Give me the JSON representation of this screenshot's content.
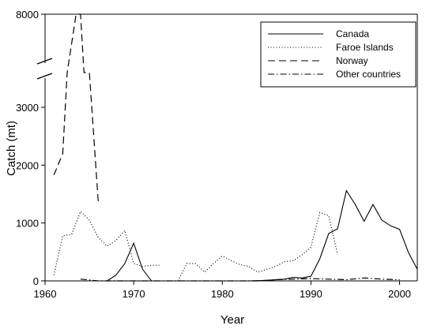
{
  "chart_data": {
    "type": "line",
    "xlabel": "Year",
    "ylabel": "Catch (mt)",
    "xlim": [
      1960,
      2002
    ],
    "ylim": [
      0,
      8000
    ],
    "x_ticks": [
      1960,
      1970,
      1980,
      1990,
      2000
    ],
    "y_ticks": [
      0,
      1000,
      2000,
      3000,
      8000
    ],
    "axis_break": {
      "from": 3600,
      "to": 8000
    },
    "grid": false,
    "legend_position": "top-right",
    "series": [
      {
        "name": "Canada",
        "style": "solid",
        "x": [
          1967,
          1968,
          1969,
          1970,
          1971,
          1972,
          1983,
          1985,
          1987,
          1988,
          1989,
          1990,
          1991,
          1992,
          1993,
          1994,
          1995,
          1996,
          1997,
          1998,
          1999,
          2000,
          2001,
          2002
        ],
        "values": [
          0,
          100,
          300,
          650,
          200,
          0,
          0,
          10,
          30,
          60,
          50,
          80,
          380,
          820,
          900,
          1560,
          1320,
          1030,
          1320,
          1050,
          950,
          890,
          490,
          200
        ]
      },
      {
        "name": "Faroe Islands",
        "style": "dotted",
        "segments": [
          {
            "x": [
              1961,
              1962,
              1963,
              1964,
              1965,
              1966,
              1967,
              1968,
              1969,
              1970,
              1971,
              1972,
              1973
            ],
            "values": [
              100,
              780,
              800,
              1200,
              1050,
              750,
              600,
              700,
              870,
              300,
              250,
              270,
              270
            ]
          },
          {
            "x": [
              1975,
              1976,
              1977,
              1978,
              1979,
              1980,
              1981,
              1982,
              1983,
              1984,
              1985,
              1986,
              1987,
              1988,
              1989,
              1990,
              1991,
              1992,
              1993
            ],
            "values": [
              0,
              300,
              300,
              150,
              300,
              430,
              350,
              280,
              250,
              150,
              200,
              250,
              330,
              350,
              450,
              580,
              1180,
              1130,
              460
            ]
          }
        ]
      },
      {
        "name": "Norway",
        "style": "dashed",
        "x": [
          1961,
          1962,
          1962.5,
          1963.5,
          1964,
          1964.4,
          1965,
          1966
        ],
        "values": [
          1830,
          2200,
          3600,
          8000,
          8000,
          3600,
          3600,
          1370
        ]
      },
      {
        "name": "Other countries",
        "style": "dash-dot",
        "x": [
          1964,
          1966,
          1984,
          1986,
          1988,
          1990,
          1992,
          1994,
          1996,
          1998,
          2000
        ],
        "values": [
          30,
          0,
          0,
          20,
          30,
          40,
          30,
          20,
          50,
          30,
          20
        ]
      }
    ]
  }
}
